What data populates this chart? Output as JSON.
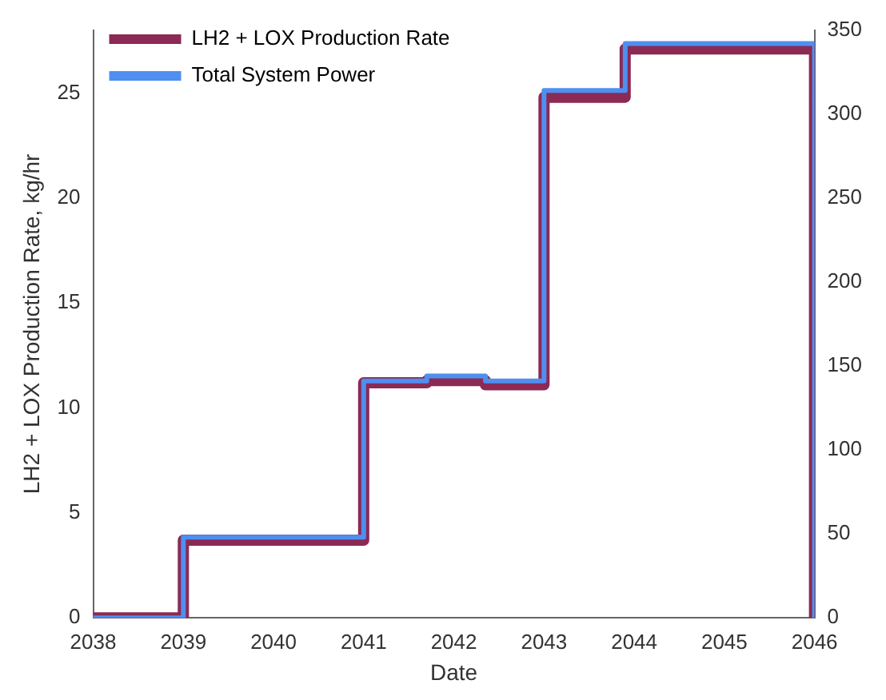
{
  "chart_data": {
    "type": "step",
    "xlabel": "Date",
    "ylabel": "LH2 + LOX Production Rate, kg/hr",
    "xlim": [
      2038,
      2046
    ],
    "xticks": [
      2038,
      2039,
      2040,
      2041,
      2042,
      2043,
      2044,
      2045,
      2046
    ],
    "ylim": [
      0,
      28
    ],
    "yticks": [
      0,
      5,
      10,
      15,
      20,
      25
    ],
    "y2lim": [
      0,
      350
    ],
    "y2ticks": [
      0,
      50,
      100,
      150,
      200,
      250,
      300,
      350
    ],
    "x": [
      2038,
      2039,
      2041,
      2041.7,
      2042.35,
      2043,
      2043.9,
      2046,
      2046
    ],
    "series": [
      {
        "name": "LH2 + LOX Production Rate",
        "color": "#8b2a55",
        "values": [
          0,
          3.7,
          11.2,
          11.3,
          11.1,
          24.8,
          27.1,
          27.1,
          0
        ]
      },
      {
        "name": "Total System Power",
        "color": "#4f8ff0",
        "axis": "y2",
        "values": [
          0,
          48,
          141,
          144,
          141,
          314,
          342,
          342,
          0
        ]
      }
    ],
    "grid": false,
    "legend": "top left",
    "marker": "none",
    "line_style": "solid"
  }
}
